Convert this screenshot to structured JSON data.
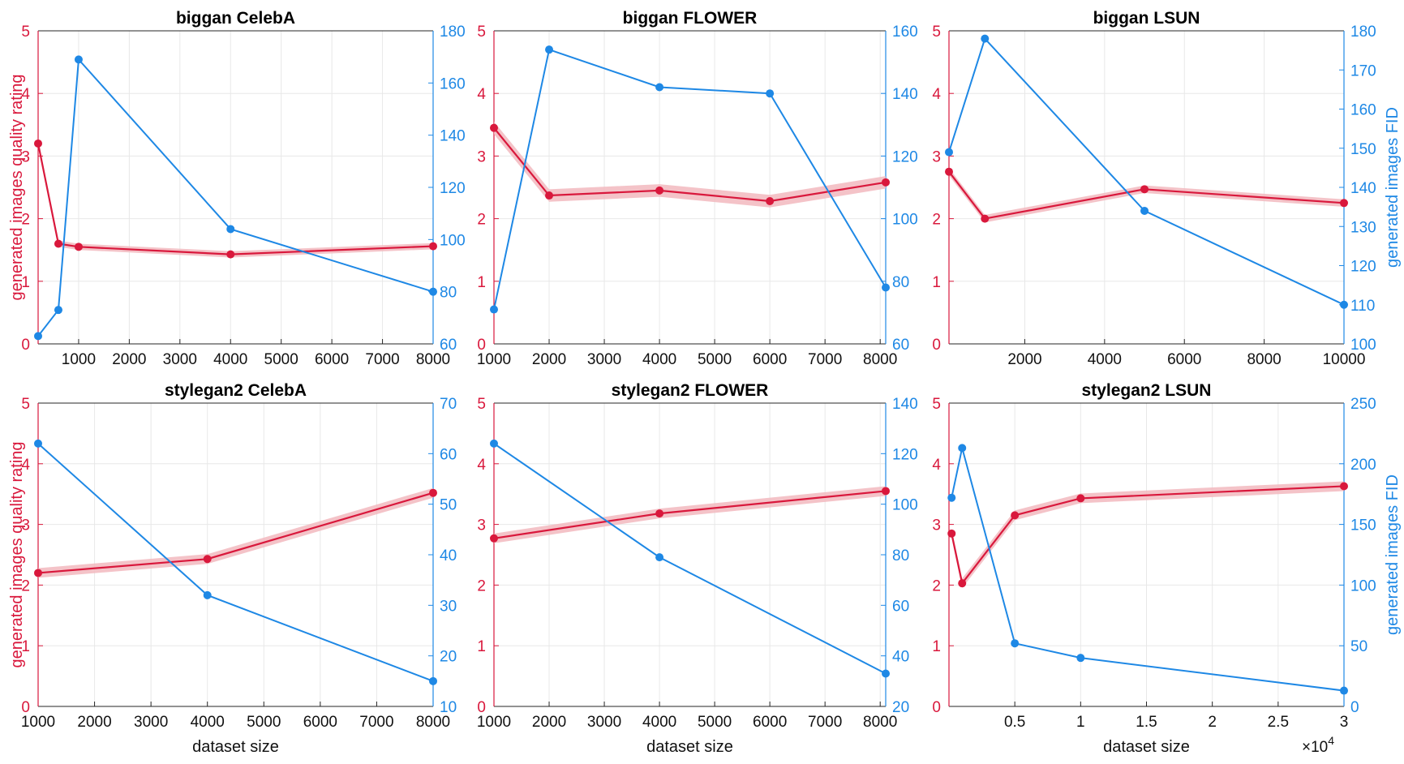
{
  "colors": {
    "rating": "#d9183c",
    "band": "#f2b8be",
    "fid": "#1e88e5"
  },
  "labels": {
    "ylabel_left": "generated images quality rating",
    "ylabel_right": "generated images FID",
    "xlabel": "dataset size"
  },
  "chart_data": [
    {
      "type": "line",
      "title": "biggan CelebA",
      "xlim": [
        200,
        8000
      ],
      "xticks": [
        1000,
        2000,
        3000,
        4000,
        5000,
        6000,
        7000,
        8000
      ],
      "ylim_left": [
        0,
        5
      ],
      "ylim_right": [
        60,
        180
      ],
      "yticks_right": [
        60,
        80,
        100,
        120,
        140,
        160,
        180
      ],
      "show_ylabel_left": true,
      "show_ylabel_right": false,
      "show_xlabel": false,
      "series": [
        {
          "x": [
            200,
            600,
            1000,
            4000,
            8000
          ],
          "values": [
            3.2,
            1.6,
            1.55,
            1.43,
            1.56
          ],
          "band": 0.05,
          "axis": "left"
        },
        {
          "x": [
            200,
            600,
            1000,
            4000,
            8000
          ],
          "values": [
            63,
            73,
            169,
            104,
            80
          ],
          "axis": "right"
        }
      ]
    },
    {
      "type": "line",
      "title": "biggan FLOWER",
      "xlim": [
        1000,
        8100
      ],
      "xticks": [
        1000,
        2000,
        3000,
        4000,
        5000,
        6000,
        7000,
        8000
      ],
      "ylim_left": [
        0,
        5
      ],
      "ylim_right": [
        60,
        160
      ],
      "yticks_right": [
        60,
        80,
        100,
        120,
        140,
        160
      ],
      "show_ylabel_left": false,
      "show_ylabel_right": false,
      "show_xlabel": false,
      "series": [
        {
          "x": [
            1000,
            2000,
            4000,
            6000,
            8100
          ],
          "values": [
            3.45,
            2.37,
            2.45,
            2.28,
            2.58
          ],
          "band": 0.1,
          "axis": "left"
        },
        {
          "x": [
            1000,
            2000,
            4000,
            6000,
            8100
          ],
          "values": [
            71,
            154,
            142,
            140,
            78
          ],
          "axis": "right"
        }
      ]
    },
    {
      "type": "line",
      "title": "biggan LSUN",
      "xlim": [
        100,
        10000
      ],
      "xticks": [
        2000,
        4000,
        6000,
        8000,
        10000
      ],
      "ylim_left": [
        0,
        5
      ],
      "ylim_right": [
        100,
        180
      ],
      "yticks_right": [
        100,
        110,
        120,
        130,
        140,
        150,
        160,
        170,
        180
      ],
      "show_ylabel_left": false,
      "show_ylabel_right": true,
      "show_xlabel": false,
      "series": [
        {
          "x": [
            100,
            1000,
            5000,
            10000
          ],
          "values": [
            2.75,
            2.0,
            2.47,
            2.25
          ],
          "band": 0.06,
          "axis": "left"
        },
        {
          "x": [
            100,
            1000,
            5000,
            10000
          ],
          "values": [
            149,
            178,
            134,
            110
          ],
          "axis": "right"
        }
      ]
    },
    {
      "type": "line",
      "title": "stylegan2 CelebA",
      "xlim": [
        1000,
        8000
      ],
      "xticks": [
        1000,
        2000,
        3000,
        4000,
        5000,
        6000,
        7000,
        8000
      ],
      "ylim_left": [
        0,
        5
      ],
      "ylim_right": [
        10,
        70
      ],
      "yticks_right": [
        10,
        20,
        30,
        40,
        50,
        60,
        70
      ],
      "show_ylabel_left": true,
      "show_ylabel_right": false,
      "show_xlabel": true,
      "series": [
        {
          "x": [
            1000,
            4000,
            8000
          ],
          "values": [
            2.2,
            2.43,
            3.52
          ],
          "band": 0.08,
          "axis": "left"
        },
        {
          "x": [
            1000,
            4000,
            8000
          ],
          "values": [
            62,
            32,
            15
          ],
          "axis": "right"
        }
      ]
    },
    {
      "type": "line",
      "title": "stylegan2 FLOWER",
      "xlim": [
        1000,
        8100
      ],
      "xticks": [
        1000,
        2000,
        3000,
        4000,
        5000,
        6000,
        7000,
        8000
      ],
      "ylim_left": [
        0,
        5
      ],
      "ylim_right": [
        20,
        140
      ],
      "yticks_right": [
        20,
        40,
        60,
        80,
        100,
        120,
        140
      ],
      "show_ylabel_left": false,
      "show_ylabel_right": false,
      "show_xlabel": true,
      "series": [
        {
          "x": [
            1000,
            4000,
            8100
          ],
          "values": [
            2.77,
            3.18,
            3.55
          ],
          "band": 0.08,
          "axis": "left"
        },
        {
          "x": [
            1000,
            4000,
            8100
          ],
          "values": [
            124,
            79,
            33
          ],
          "axis": "right"
        }
      ]
    },
    {
      "type": "line",
      "title": "stylegan2 LSUN",
      "xlim": [
        0,
        30000
      ],
      "xticks": [
        5000,
        10000,
        15000,
        20000,
        25000,
        30000
      ],
      "xticklabels": [
        "0.5",
        "1",
        "1.5",
        "2",
        "2.5",
        "3"
      ],
      "x_multiplier": "×10",
      "x_multiplier_exp": "4",
      "ylim_left": [
        0,
        5
      ],
      "ylim_right": [
        0,
        250
      ],
      "yticks_right": [
        0,
        50,
        100,
        150,
        200,
        250
      ],
      "show_ylabel_left": false,
      "show_ylabel_right": true,
      "show_xlabel": true,
      "series": [
        {
          "x": [
            200,
            1000,
            5000,
            10000,
            30000
          ],
          "values": [
            2.85,
            2.03,
            3.15,
            3.43,
            3.63
          ],
          "band": 0.08,
          "axis": "left"
        },
        {
          "x": [
            200,
            1000,
            5000,
            10000,
            30000
          ],
          "values": [
            172,
            213,
            52,
            40,
            13
          ],
          "axis": "right"
        }
      ]
    }
  ]
}
